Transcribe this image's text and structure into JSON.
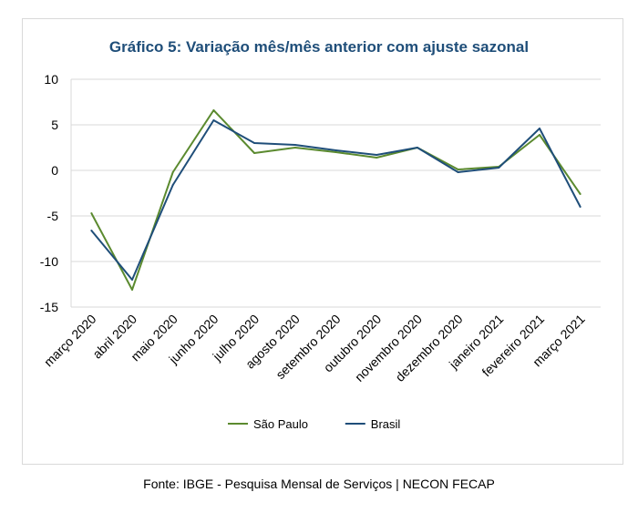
{
  "chart_data": {
    "type": "line",
    "title": "Gráfico 5: Variação mês/mês anterior com ajuste sazonal",
    "categories": [
      "março 2020",
      "abril 2020",
      "maio 2020",
      "junho 2020",
      "julho 2020",
      "agosto 2020",
      "setembro 2020",
      "outubro 2020",
      "novembro 2020",
      "dezembro 2020",
      "janeiro 2021",
      "fevereiro 2021",
      "março 2021"
    ],
    "series": [
      {
        "name": "São Paulo",
        "color": "#5b8a2f",
        "values": [
          -4.7,
          -13.1,
          -0.2,
          6.6,
          1.9,
          2.5,
          2.0,
          1.4,
          2.5,
          0.1,
          0.4,
          3.9,
          -2.6
        ]
      },
      {
        "name": "Brasil",
        "color": "#1f4e79",
        "values": [
          -6.6,
          -12.0,
          -1.6,
          5.5,
          3.0,
          2.8,
          2.2,
          1.7,
          2.5,
          -0.2,
          0.3,
          4.6,
          -4.0
        ]
      }
    ],
    "ylim": [
      -15,
      10
    ],
    "yticks": [
      10,
      5,
      0,
      -5,
      -10,
      -15
    ],
    "grid": true,
    "legend": "bottom",
    "xlabel": "",
    "ylabel": ""
  },
  "source": "Fonte: IBGE - Pesquisa Mensal de Serviços | NECON FECAP"
}
